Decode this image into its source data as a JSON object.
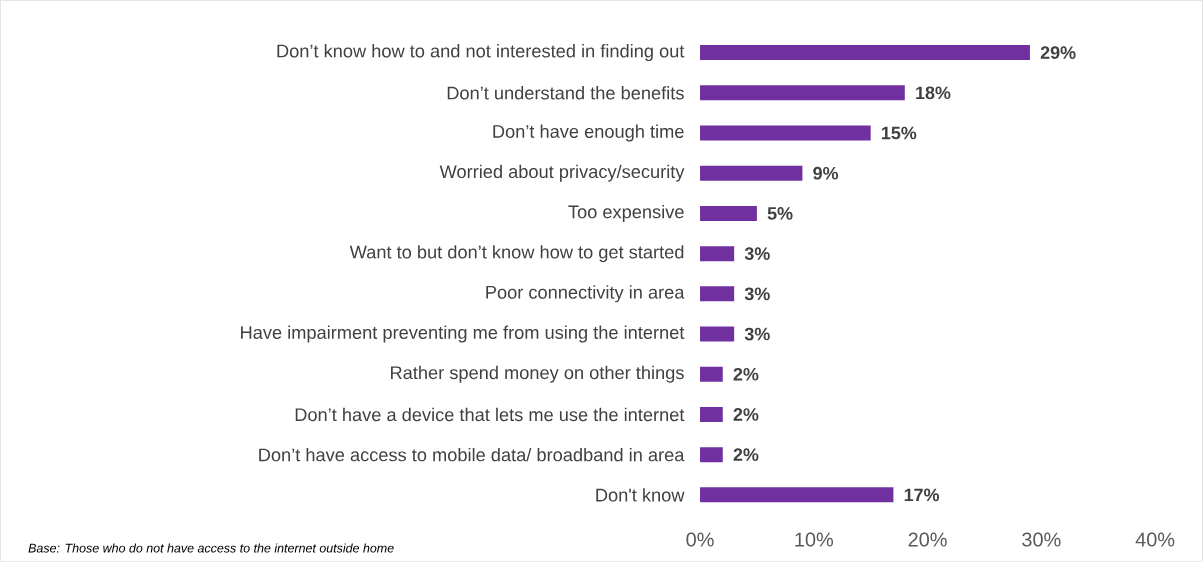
{
  "chart_data": {
    "type": "bar",
    "orientation": "horizontal",
    "categories": [
      "Don’t know how to and not interested in finding out",
      "Don’t understand the benefits",
      "Don’t have enough time",
      "Worried about privacy/security",
      "Too expensive",
      "Want to but don’t know how to get started",
      "Poor connectivity in area",
      "Have impairment preventing me from using the internet",
      "Rather spend money on other things",
      "Don’t have a device that lets me use the internet",
      "Don’t have access to mobile data/ broadband in area",
      "Don't know"
    ],
    "values": [
      29,
      18,
      15,
      9,
      5,
      3,
      3,
      3,
      2,
      2,
      2,
      17
    ],
    "value_labels": [
      "29%",
      "18%",
      "15%",
      "9%",
      "5%",
      "3%",
      "3%",
      "3%",
      "2%",
      "2%",
      "2%",
      "17%"
    ],
    "color": "#7030a0",
    "xlim": [
      0,
      40
    ],
    "xticks": [
      {
        "value": 0,
        "label": "0%"
      },
      {
        "value": 10,
        "label": "10%"
      },
      {
        "value": 20,
        "label": "20%"
      },
      {
        "value": 30,
        "label": "30%"
      },
      {
        "value": 40,
        "label": "40%"
      }
    ],
    "annotations": [
      "Base: Those who do not have access to the internet outside home"
    ]
  }
}
